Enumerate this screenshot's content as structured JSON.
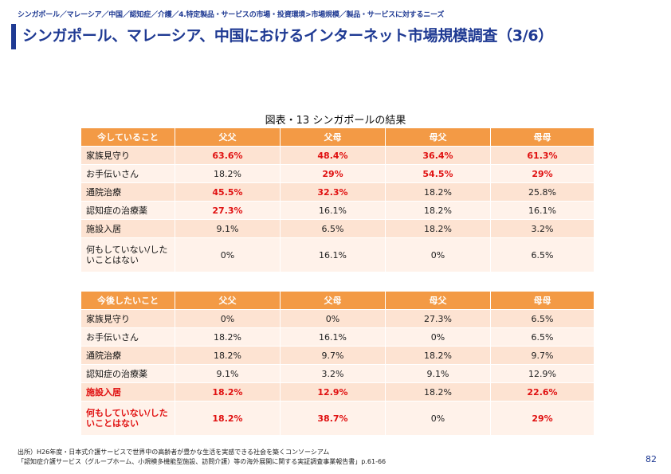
{
  "header": {
    "breadcrumb": "シンガポール／マレーシア／中国／認知症／介護／4.特定製品・サービスの市場・投資環境>市場規模／製品・サービスに対するニーズ",
    "title": "シンガポール、マレーシア、中国におけるインターネット市場規模調査（3/6）"
  },
  "figure": {
    "caption": "図表・13 シンガポールの結果"
  },
  "table1": {
    "headers": [
      "今していること",
      "父父",
      "父母",
      "母父",
      "母母"
    ],
    "rows": [
      {
        "label": "家族見守り",
        "cells": [
          "63.6%",
          "48.4%",
          "36.4%",
          "61.3%"
        ],
        "red": [
          true,
          true,
          true,
          true
        ],
        "label_red": false
      },
      {
        "label": "お手伝いさん",
        "cells": [
          "18.2%",
          "29%",
          "54.5%",
          "29%"
        ],
        "red": [
          false,
          true,
          true,
          true
        ],
        "label_red": false
      },
      {
        "label": "通院治療",
        "cells": [
          "45.5%",
          "32.3%",
          "18.2%",
          "25.8%"
        ],
        "red": [
          true,
          true,
          false,
          false
        ],
        "label_red": false
      },
      {
        "label": "認知症の治療薬",
        "cells": [
          "27.3%",
          "16.1%",
          "18.2%",
          "16.1%"
        ],
        "red": [
          true,
          false,
          false,
          false
        ],
        "label_red": false
      },
      {
        "label": "施設入居",
        "cells": [
          "9.1%",
          "6.5%",
          "18.2%",
          "3.2%"
        ],
        "red": [
          false,
          false,
          false,
          false
        ],
        "label_red": false
      },
      {
        "label": "何もしていない/したいことはない",
        "cells": [
          "0%",
          "16.1%",
          "0%",
          "6.5%"
        ],
        "red": [
          false,
          false,
          false,
          false
        ],
        "label_red": false
      }
    ]
  },
  "table2": {
    "headers": [
      "今後したいこと",
      "父父",
      "父母",
      "母父",
      "母母"
    ],
    "rows": [
      {
        "label": "家族見守り",
        "cells": [
          "0%",
          "0%",
          "27.3%",
          "6.5%"
        ],
        "red": [
          false,
          false,
          false,
          false
        ],
        "label_red": false
      },
      {
        "label": "お手伝いさん",
        "cells": [
          "18.2%",
          "16.1%",
          "0%",
          "6.5%"
        ],
        "red": [
          false,
          false,
          false,
          false
        ],
        "label_red": false
      },
      {
        "label": "通院治療",
        "cells": [
          "18.2%",
          "9.7%",
          "18.2%",
          "9.7%"
        ],
        "red": [
          false,
          false,
          false,
          false
        ],
        "label_red": false
      },
      {
        "label": "認知症の治療薬",
        "cells": [
          "9.1%",
          "3.2%",
          "9.1%",
          "12.9%"
        ],
        "red": [
          false,
          false,
          false,
          false
        ],
        "label_red": false
      },
      {
        "label": "施設入居",
        "cells": [
          "18.2%",
          "12.9%",
          "18.2%",
          "22.6%"
        ],
        "red": [
          true,
          true,
          false,
          true
        ],
        "label_red": true
      },
      {
        "label": "何もしていない/したいことはない",
        "cells": [
          "18.2%",
          "38.7%",
          "0%",
          "29%"
        ],
        "red": [
          true,
          true,
          false,
          true
        ],
        "label_red": true
      }
    ]
  },
  "footer": {
    "source_line1": "出所）H26年度・日本式介護サービスで世界中の高齢者が豊かな生活を実感できる社会を築くコンソーシアム",
    "source_line2": "「認知症介護サービス（グループホーム、小規模多機能型施設、訪問介護）等の海外展開に関する実証調査事業報告書」p.61-66",
    "page_number": "82"
  }
}
